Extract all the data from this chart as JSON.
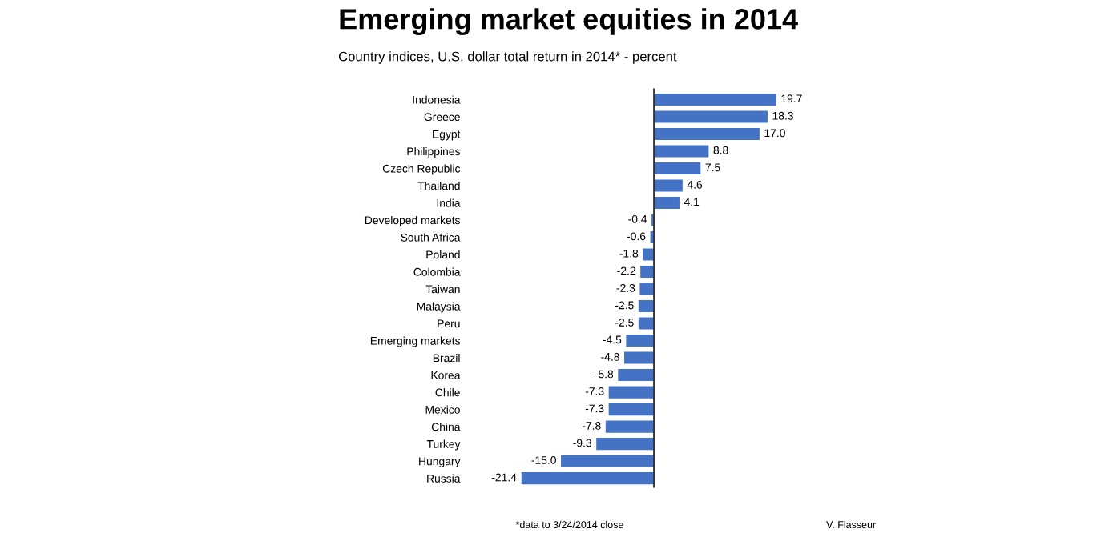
{
  "chart_data": {
    "type": "bar",
    "orientation": "horizontal",
    "title": "Emerging market equities in 2014",
    "subtitle": "Country indices, U.S. dollar total return in 2014* - percent",
    "categories": [
      "Indonesia",
      "Greece",
      "Egypt",
      "Philippines",
      "Czech Republic",
      "Thailand",
      "India",
      "Developed markets",
      "South Africa",
      "Poland",
      "Colombia",
      "Taiwan",
      "Malaysia",
      "Peru",
      "Emerging markets",
      "Brazil",
      "Korea",
      "Chile",
      "Mexico",
      "China",
      "Turkey",
      "Hungary",
      "Russia"
    ],
    "values": [
      19.7,
      18.3,
      17.0,
      8.8,
      7.5,
      4.6,
      4.1,
      -0.4,
      -0.6,
      -1.8,
      -2.2,
      -2.3,
      -2.5,
      -2.5,
      -4.5,
      -4.8,
      -5.8,
      -7.3,
      -7.3,
      -7.8,
      -9.3,
      -15.0,
      -21.4
    ],
    "value_labels": [
      "19.7",
      "18.3",
      "17.0",
      "8.8",
      "7.5",
      "4.6",
      "4.1",
      "-0.4",
      "-0.6",
      "-1.8",
      "-2.2",
      "-2.3",
      "-2.5",
      "-2.5",
      "-4.5",
      "-4.8",
      "-5.8",
      "-7.3",
      "-7.3",
      "-7.8",
      "-9.3",
      "-15.0",
      "-21.4"
    ],
    "color": "#4472c4",
    "grid": false,
    "legend": false,
    "annotations": [
      "*data to 3/24/2014 close",
      "V. Flasseur"
    ]
  }
}
